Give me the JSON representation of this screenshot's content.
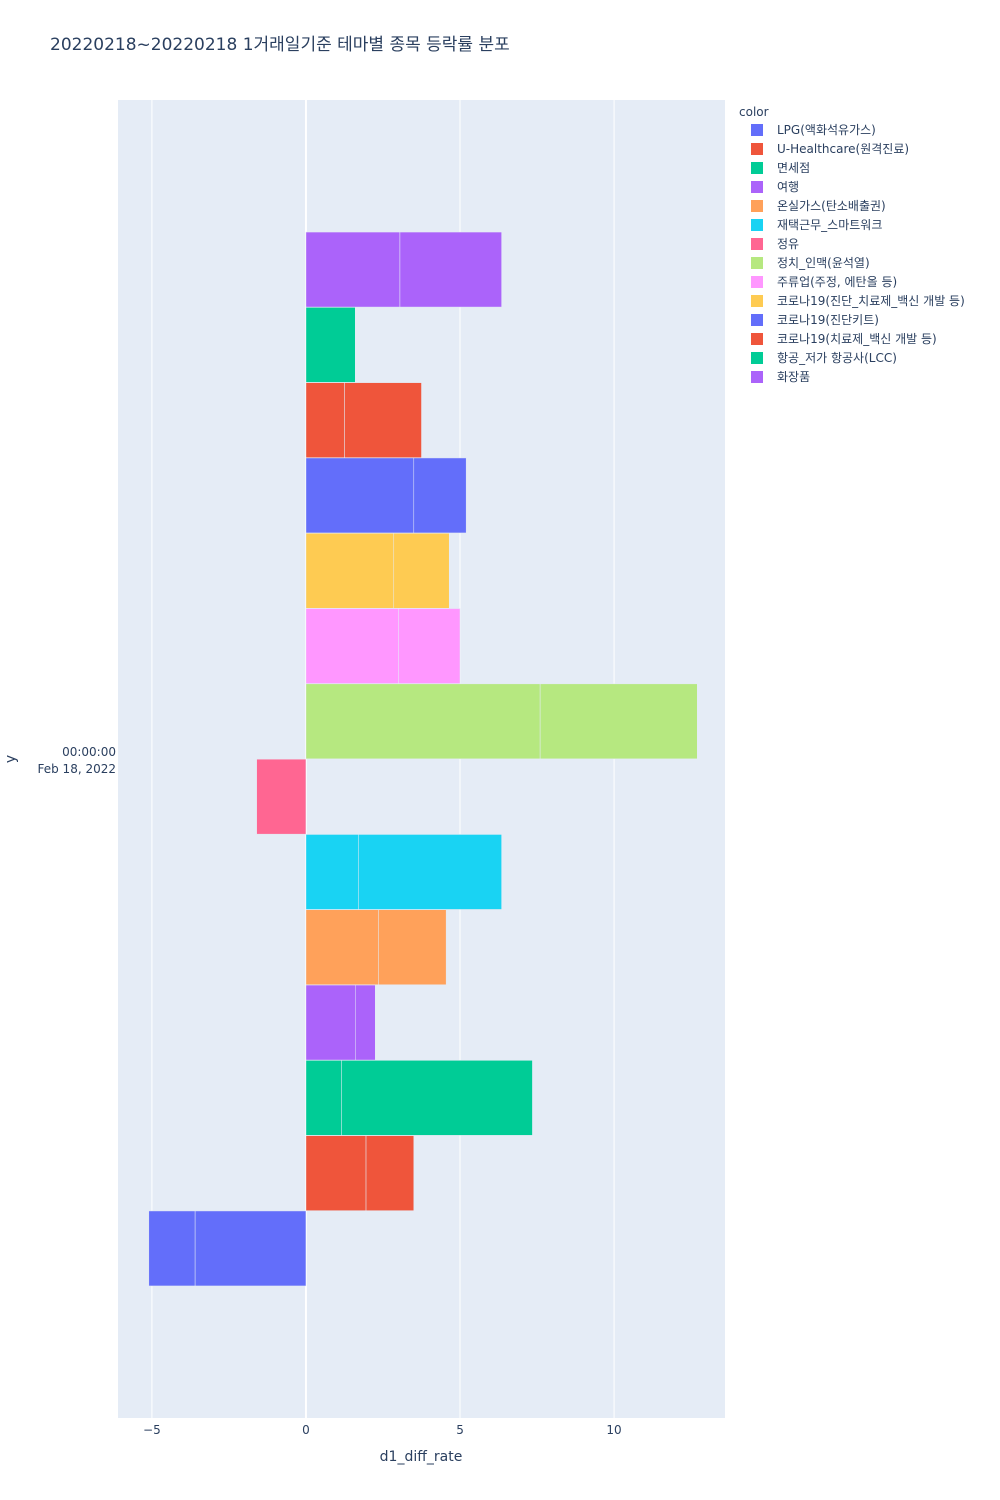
{
  "chart_data": {
    "type": "bar",
    "orientation": "horizontal",
    "barmode": "relative",
    "title": "20220218~20220218 1거래일기준 테마별 종목 등락률 분포",
    "xlabel": "d1_diff_rate",
    "ylabel": "y",
    "y_tick_label": [
      "00:00:00",
      "Feb 18, 2022"
    ],
    "xlim": [
      -6.1,
      13.6
    ],
    "x_ticks": [
      -5,
      0,
      5,
      10
    ],
    "x_tick_labels": [
      "−5",
      "0",
      "5",
      "10"
    ],
    "grid": true,
    "legend_title": "color",
    "legend_position": "right",
    "series": [
      {
        "name": "LPG(액화석유가스)",
        "color": "#636efa",
        "values": [
          -3.6,
          -1.5
        ]
      },
      {
        "name": "U-Healthcare(원격진료)",
        "color": "#EF553B",
        "values": [
          1.95,
          1.55
        ]
      },
      {
        "name": "면세점",
        "color": "#00cc96",
        "values": [
          1.15,
          6.2
        ]
      },
      {
        "name": "여행",
        "color": "#ab63fa",
        "values": [
          1.6,
          0.65
        ]
      },
      {
        "name": "온실가스(탄소배출권)",
        "color": "#FFA15A",
        "values": [
          2.35,
          2.2
        ]
      },
      {
        "name": "재택근무_스마트워크",
        "color": "#19d3f3",
        "values": [
          1.7,
          4.65
        ]
      },
      {
        "name": "정유",
        "color": "#FF6692",
        "values": [
          -1.6
        ]
      },
      {
        "name": "정치_인맥(윤석열)",
        "color": "#B6E880",
        "values": [
          7.6,
          5.1
        ]
      },
      {
        "name": "주류업(주정, 에탄올 등)",
        "color": "#FF97FF",
        "values": [
          3.0,
          2.0
        ]
      },
      {
        "name": "코로나19(진단_치료제_백신 개발 등)",
        "color": "#FECB52",
        "values": [
          2.85,
          1.8
        ]
      },
      {
        "name": "코로나19(진단키트)",
        "color": "#636efa",
        "values": [
          3.5,
          1.7
        ]
      },
      {
        "name": "코로나19(치료제_백신 개발 등)",
        "color": "#EF553B",
        "values": [
          1.25,
          2.5
        ]
      },
      {
        "name": "항공_저가 항공사(LCC)",
        "color": "#00cc96",
        "values": [
          1.6
        ]
      },
      {
        "name": "화장품",
        "color": "#ab63fa",
        "values": [
          3.05,
          3.3
        ]
      }
    ]
  }
}
